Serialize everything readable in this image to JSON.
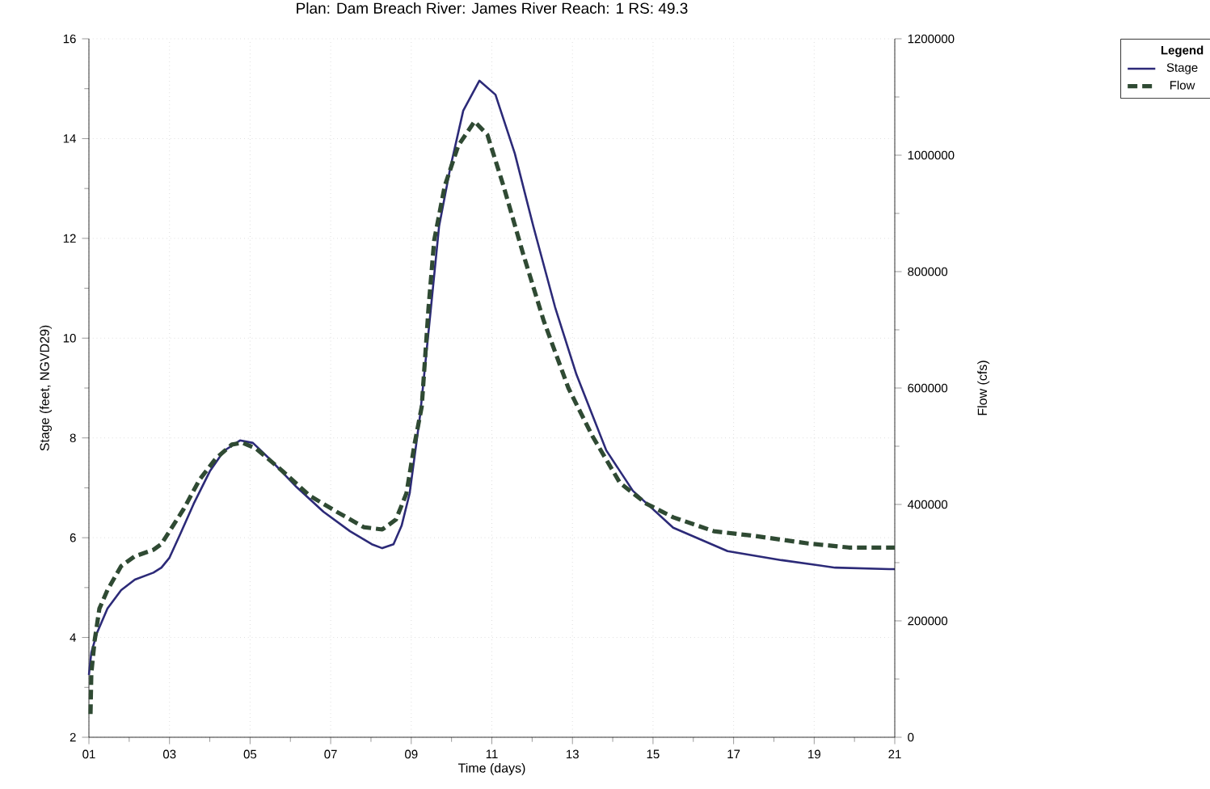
{
  "chart_data": {
    "type": "line",
    "title": "Plan: Dam Breach River: James River Reach: 1 RS: 49.3",
    "xlabel": "Time (days)",
    "ylabel": "Stage (feet, NGVD29)",
    "y2label": "Flow (cfs)",
    "legend_title": "Legend",
    "xlim": [
      1,
      21
    ],
    "xticks": [
      {
        "value": 1,
        "label": "01"
      },
      {
        "value": 3,
        "label": "03"
      },
      {
        "value": 5,
        "label": "05"
      },
      {
        "value": 7,
        "label": "07"
      },
      {
        "value": 9,
        "label": "09"
      },
      {
        "value": 11,
        "label": "11"
      },
      {
        "value": 13,
        "label": "13"
      },
      {
        "value": 15,
        "label": "15"
      },
      {
        "value": 17,
        "label": "17"
      },
      {
        "value": 19,
        "label": "19"
      },
      {
        "value": 21,
        "label": "21"
      }
    ],
    "ylim": [
      2,
      16
    ],
    "yticks": [
      2,
      4,
      6,
      8,
      10,
      12,
      14,
      16
    ],
    "y2lim": [
      0,
      1200000
    ],
    "y2ticks": [
      0,
      200000,
      400000,
      600000,
      800000,
      1000000,
      1200000
    ],
    "grid": true,
    "legend": "top right",
    "marker": "none",
    "series": [
      {
        "name": "Stage",
        "color": "#2c2a78",
        "line_style": "solid",
        "x": [
          1,
          1.06,
          1.2,
          1.46,
          1.8,
          2.14,
          2.6,
          2.8,
          3.0,
          3.27,
          3.6,
          4.0,
          4.35,
          4.75,
          5.07,
          5.47,
          6.16,
          6.82,
          7.48,
          8.02,
          8.28,
          8.56,
          8.76,
          8.96,
          9.22,
          9.49,
          9.69,
          9.97,
          10.29,
          10.69,
          11.09,
          11.57,
          12.03,
          12.57,
          13.1,
          13.84,
          14.5,
          15.5,
          16.85,
          18.19,
          19.52,
          20.86,
          21
        ],
        "values": [
          3.25,
          3.7,
          4.09,
          4.58,
          4.95,
          5.16,
          5.3,
          5.4,
          5.6,
          6.08,
          6.68,
          7.33,
          7.74,
          7.95,
          7.9,
          7.59,
          7.01,
          6.52,
          6.13,
          5.87,
          5.79,
          5.87,
          6.24,
          6.89,
          8.46,
          10.62,
          12.24,
          13.42,
          14.56,
          15.16,
          14.88,
          13.7,
          12.24,
          10.62,
          9.27,
          7.75,
          6.94,
          6.2,
          5.73,
          5.55,
          5.4,
          5.37,
          5.37
        ]
      },
      {
        "name": "Flow",
        "color": "#2f4a33",
        "line_style": "dashed",
        "axis": "y2",
        "x": [
          1.04,
          1.06,
          1.14,
          1.26,
          1.46,
          1.8,
          2.14,
          2.6,
          2.8,
          3.0,
          3.35,
          3.75,
          4.15,
          4.55,
          4.81,
          5.15,
          5.81,
          6.48,
          7.16,
          7.82,
          8.28,
          8.62,
          8.88,
          9.08,
          9.26,
          9.43,
          9.57,
          9.83,
          10.17,
          10.57,
          10.89,
          11.29,
          11.77,
          12.29,
          12.9,
          13.1,
          13.5,
          14.18,
          14.84,
          15.5,
          16.51,
          17.51,
          18.85,
          19.86,
          20.86,
          21
        ],
        "values": [
          40000,
          110000,
          165000,
          221000,
          253000,
          294000,
          311000,
          322000,
          332000,
          354000,
          392000,
          443000,
          479000,
          503000,
          506000,
          496000,
          457000,
          415000,
          387000,
          361000,
          357000,
          374000,
          419000,
          503000,
          568000,
          739000,
          854000,
          947000,
          1017000,
          1058000,
          1035000,
          947000,
          832000,
          715000,
          600000,
          572000,
          517000,
          437000,
          401000,
          378000,
          354000,
          346000,
          333000,
          326000,
          326000,
          326000
        ]
      }
    ]
  }
}
